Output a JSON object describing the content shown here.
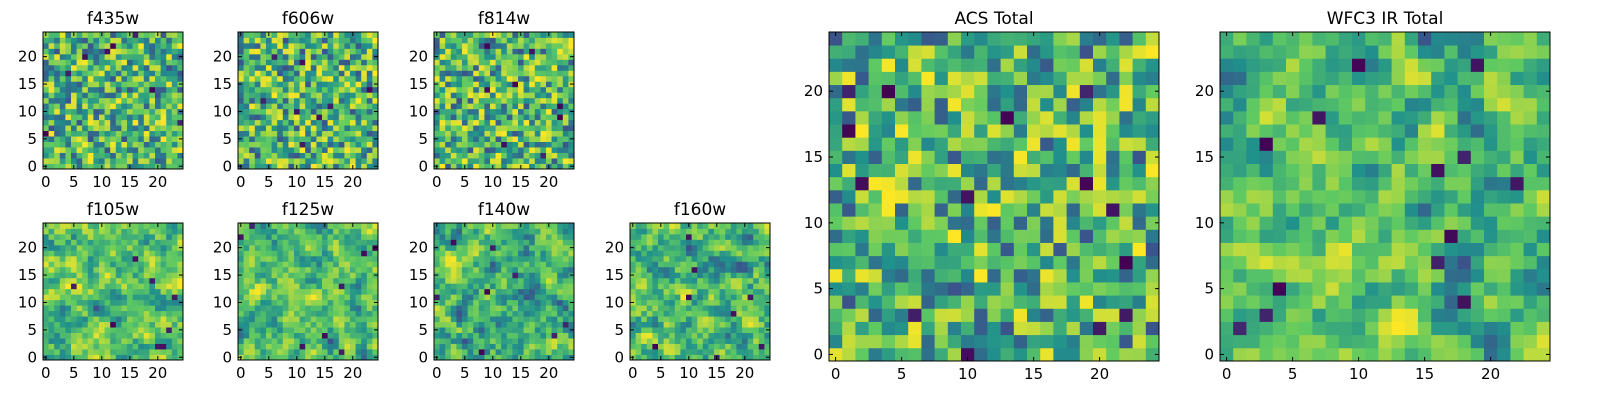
{
  "chart_data": {
    "type": "heatmap",
    "colormap": [
      "#440154",
      "#3b528b",
      "#21918c",
      "#5ec962",
      "#fde725"
    ],
    "grid_size": 25,
    "panels": [
      {
        "title": "f435w",
        "xticks": [
          0,
          5,
          10,
          15,
          20
        ],
        "yticks": [
          0,
          5,
          10,
          15,
          20
        ],
        "xlim": [
          -0.5,
          24.5
        ],
        "ylim": [
          -0.5,
          24.5
        ]
      },
      {
        "title": "f606w",
        "xticks": [
          0,
          5,
          10,
          15,
          20
        ],
        "yticks": [
          0,
          5,
          10,
          15,
          20
        ],
        "xlim": [
          -0.5,
          24.5
        ],
        "ylim": [
          -0.5,
          24.5
        ]
      },
      {
        "title": "f814w",
        "xticks": [
          0,
          5,
          10,
          15,
          20
        ],
        "yticks": [
          0,
          5,
          10,
          15,
          20
        ],
        "xlim": [
          -0.5,
          24.5
        ],
        "ylim": [
          -0.5,
          24.5
        ]
      },
      {
        "title": "f105w",
        "xticks": [
          0,
          5,
          10,
          15,
          20
        ],
        "yticks": [
          0,
          5,
          10,
          15,
          20
        ],
        "xlim": [
          -0.5,
          24.5
        ],
        "ylim": [
          -0.5,
          24.5
        ]
      },
      {
        "title": "f125w",
        "xticks": [
          0,
          5,
          10,
          15,
          20
        ],
        "yticks": [
          0,
          5,
          10,
          15,
          20
        ],
        "xlim": [
          -0.5,
          24.5
        ],
        "ylim": [
          -0.5,
          24.5
        ]
      },
      {
        "title": "f140w",
        "xticks": [
          0,
          5,
          10,
          15,
          20
        ],
        "yticks": [
          0,
          5,
          10,
          15,
          20
        ],
        "xlim": [
          -0.5,
          24.5
        ],
        "ylim": [
          -0.5,
          24.5
        ]
      },
      {
        "title": "f160w",
        "xticks": [
          0,
          5,
          10,
          15,
          20
        ],
        "yticks": [
          0,
          5,
          10,
          15,
          20
        ],
        "xlim": [
          -0.5,
          24.5
        ],
        "ylim": [
          -0.5,
          24.5
        ]
      },
      {
        "title": "ACS Total",
        "xticks": [
          0,
          5,
          10,
          15,
          20
        ],
        "yticks": [
          0,
          5,
          10,
          15,
          20
        ],
        "xlim": [
          -0.5,
          24.5
        ],
        "ylim": [
          -0.5,
          24.5
        ]
      },
      {
        "title": "WFC3 IR Total",
        "xticks": [
          0,
          5,
          10,
          15,
          20
        ],
        "yticks": [
          0,
          5,
          10,
          15,
          20
        ],
        "xlim": [
          -0.5,
          24.5
        ],
        "ylim": [
          -0.5,
          24.5
        ]
      }
    ]
  }
}
